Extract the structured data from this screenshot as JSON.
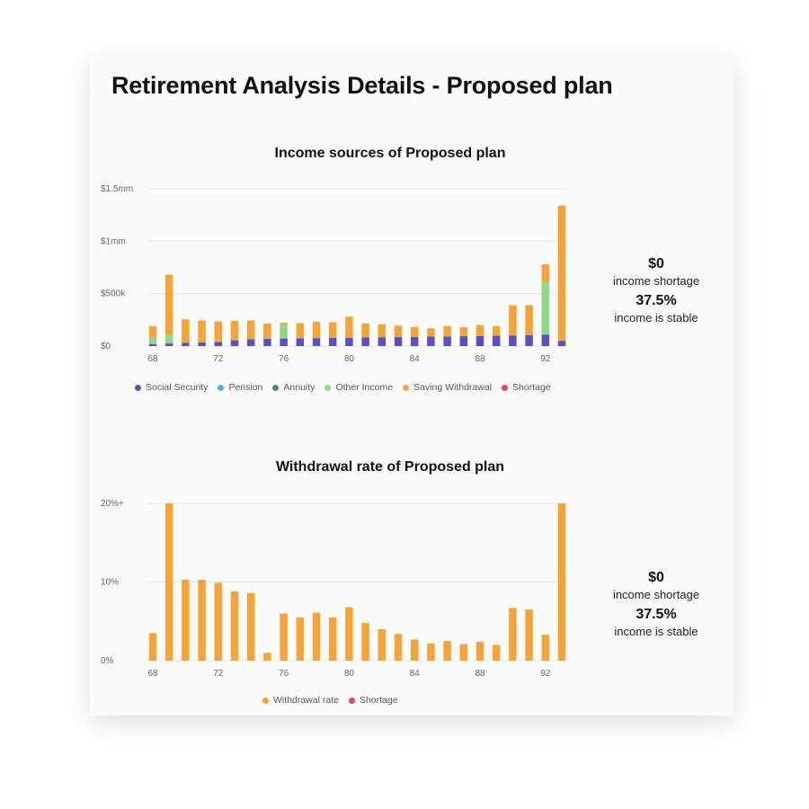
{
  "page_title": "Retirement Analysis Details - Proposed plan",
  "colors": {
    "social_security": "#5b4fc2",
    "pension": "#49b3ec",
    "annuity": "#3e8f6d",
    "other_income": "#8fd88a",
    "saving_withdrawal": "#f5a43a",
    "shortage": "#e8475a",
    "withdrawal_rate": "#f5a43a",
    "grid": "#e4e4e4"
  },
  "income_chart": {
    "title": "Income sources of Proposed plan",
    "summary": {
      "shortage_value": "$0",
      "shortage_label": "income shortage",
      "stable_value": "37.5%",
      "stable_label": "income is stable"
    },
    "legend": [
      {
        "label": "Social Security",
        "color_key": "social_security"
      },
      {
        "label": "Pension",
        "color_key": "pension"
      },
      {
        "label": "Annuity",
        "color_key": "annuity"
      },
      {
        "label": "Other Income",
        "color_key": "other_income"
      },
      {
        "label": "Saving Withdrawal",
        "color_key": "saving_withdrawal"
      },
      {
        "label": "Shortage",
        "color_key": "shortage"
      }
    ]
  },
  "withdrawal_chart": {
    "title": "Withdrawal rate of Proposed plan",
    "summary": {
      "shortage_value": "$0",
      "shortage_label": "income shortage",
      "stable_value": "37.5%",
      "stable_label": "income is stable"
    },
    "legend": [
      {
        "label": "Withdrawal rate",
        "color_key": "withdrawal_rate"
      },
      {
        "label": "Shortage",
        "color_key": "shortage"
      }
    ]
  },
  "chart_data": [
    {
      "type": "bar",
      "stacked": true,
      "title": "Income sources of Proposed plan",
      "x": [
        68,
        69,
        70,
        71,
        72,
        73,
        74,
        75,
        76,
        77,
        78,
        79,
        80,
        81,
        82,
        83,
        84,
        85,
        86,
        87,
        88,
        89,
        90,
        91,
        92,
        93
      ],
      "x_ticks": [
        "68",
        "72",
        "76",
        "80",
        "84",
        "88",
        "92"
      ],
      "y_ticks": [
        {
          "value": 0,
          "label": "$0"
        },
        {
          "value": 500000,
          "label": "$500k"
        },
        {
          "value": 1000000,
          "label": "$1mm"
        },
        {
          "value": 1500000,
          "label": "$1.5mm"
        }
      ],
      "ylim": [
        0,
        1500000
      ],
      "grid": true,
      "legend_position": "bottom",
      "series": [
        {
          "name": "Social Security",
          "color_key": "social_security",
          "values": [
            20000,
            25000,
            30000,
            35000,
            40000,
            55000,
            65000,
            70000,
            72000,
            74000,
            76000,
            78000,
            80000,
            82000,
            84000,
            86000,
            88000,
            90000,
            92000,
            94000,
            96000,
            98000,
            100000,
            105000,
            110000,
            50000
          ]
        },
        {
          "name": "Pension",
          "color_key": "pension",
          "values": [
            0,
            0,
            0,
            0,
            0,
            0,
            0,
            0,
            0,
            0,
            0,
            0,
            0,
            0,
            0,
            0,
            0,
            0,
            0,
            0,
            0,
            0,
            0,
            0,
            0,
            0
          ]
        },
        {
          "name": "Annuity",
          "color_key": "annuity",
          "values": [
            0,
            0,
            0,
            0,
            0,
            0,
            0,
            0,
            0,
            0,
            0,
            0,
            0,
            0,
            0,
            0,
            0,
            0,
            0,
            0,
            0,
            0,
            0,
            0,
            0,
            0
          ]
        },
        {
          "name": "Other Income",
          "color_key": "other_income",
          "values": [
            60000,
            80000,
            0,
            0,
            0,
            0,
            0,
            0,
            130000,
            0,
            0,
            0,
            0,
            0,
            0,
            0,
            0,
            0,
            0,
            0,
            0,
            0,
            0,
            0,
            500000,
            0
          ]
        },
        {
          "name": "Saving Withdrawal",
          "color_key": "saving_withdrawal",
          "values": [
            110000,
            575000,
            225000,
            210000,
            195000,
            185000,
            180000,
            145000,
            20000,
            145000,
            155000,
            150000,
            200000,
            135000,
            125000,
            110000,
            95000,
            80000,
            100000,
            86000,
            104000,
            92000,
            290000,
            285000,
            170000,
            1290000
          ]
        },
        {
          "name": "Shortage",
          "color_key": "shortage",
          "values": [
            0,
            0,
            0,
            0,
            0,
            0,
            0,
            0,
            0,
            0,
            0,
            0,
            0,
            0,
            0,
            0,
            0,
            0,
            0,
            0,
            0,
            0,
            0,
            0,
            0,
            0
          ]
        }
      ]
    },
    {
      "type": "bar",
      "title": "Withdrawal rate of Proposed plan",
      "x": [
        68,
        69,
        70,
        71,
        72,
        73,
        74,
        75,
        76,
        77,
        78,
        79,
        80,
        81,
        82,
        83,
        84,
        85,
        86,
        87,
        88,
        89,
        90,
        91,
        92,
        93
      ],
      "x_ticks": [
        "68",
        "72",
        "76",
        "80",
        "84",
        "88",
        "92"
      ],
      "y_ticks": [
        {
          "value": 0,
          "label": "0%"
        },
        {
          "value": 10,
          "label": "10%"
        },
        {
          "value": 20,
          "label": "20%+"
        }
      ],
      "ylim": [
        0,
        20
      ],
      "grid": true,
      "legend_position": "bottom",
      "series": [
        {
          "name": "Withdrawal rate",
          "color_key": "withdrawal_rate",
          "values": [
            3.5,
            20,
            10.3,
            10.3,
            9.9,
            8.8,
            8.6,
            1.0,
            6.0,
            5.5,
            6.1,
            5.5,
            6.8,
            4.8,
            4.0,
            3.4,
            2.7,
            2.2,
            2.5,
            2.1,
            2.4,
            2.0,
            6.7,
            6.5,
            3.3,
            20
          ]
        },
        {
          "name": "Shortage",
          "color_key": "shortage",
          "values": [
            0,
            0,
            0,
            0,
            0,
            0,
            0,
            0,
            0,
            0,
            0,
            0,
            0,
            0,
            0,
            0,
            0,
            0,
            0,
            0,
            0,
            0,
            0,
            0,
            0,
            0
          ]
        }
      ]
    }
  ]
}
